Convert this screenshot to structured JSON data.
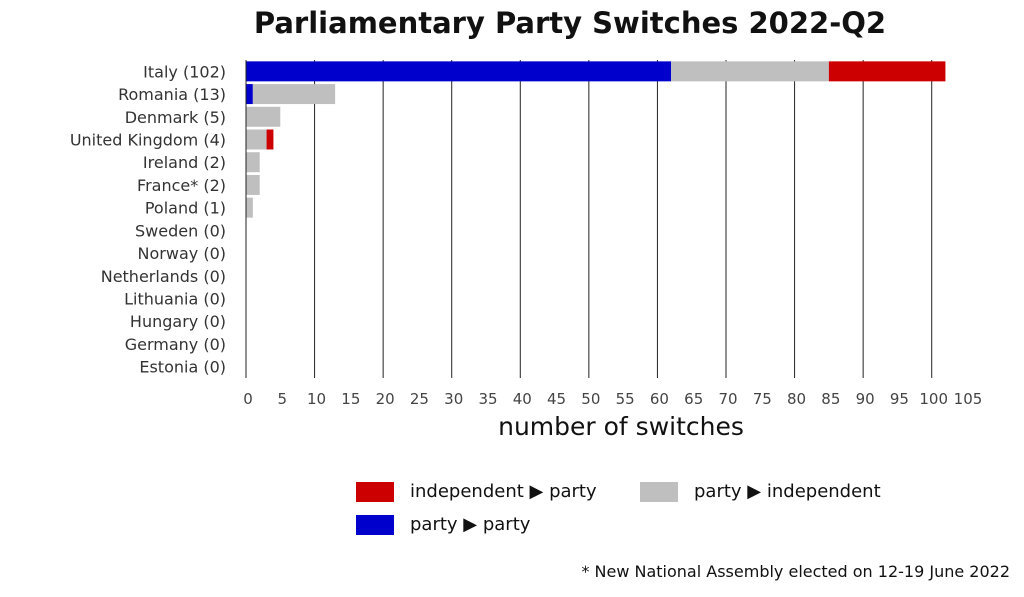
{
  "chart_data": {
    "type": "bar",
    "orientation": "horizontal",
    "stacked": true,
    "title": "Parliamentary Party Switches 2022-Q2",
    "xlabel": "number of switches",
    "ylabel": "",
    "xlim": [
      0,
      105
    ],
    "xticks": [
      0,
      5,
      10,
      15,
      20,
      25,
      30,
      35,
      40,
      45,
      50,
      55,
      60,
      65,
      70,
      75,
      80,
      85,
      90,
      95,
      100,
      105
    ],
    "grid": "vertical lines every 10",
    "legend_position": "bottom-right",
    "categories": [
      "Italy (102)",
      "Romania (13)",
      "Denmark (5)",
      "United Kingdom (4)",
      "Ireland (2)",
      "France* (2)",
      "Poland (1)",
      "Sweden (0)",
      "Norway (0)",
      "Netherlands (0)",
      "Lithuania (0)",
      "Hungary (0)",
      "Germany (0)",
      "Estonia (0)"
    ],
    "series": [
      {
        "name": "party ▶ party",
        "color": "#0000cc",
        "values": [
          62,
          1,
          0,
          0,
          0,
          0,
          0,
          0,
          0,
          0,
          0,
          0,
          0,
          0
        ]
      },
      {
        "name": "party ▶ independent",
        "color": "#bfbfbf",
        "values": [
          23,
          12,
          5,
          3,
          2,
          2,
          1,
          0,
          0,
          0,
          0,
          0,
          0,
          0
        ]
      },
      {
        "name": "independent ▶ party",
        "color": "#cc0000",
        "values": [
          17,
          0,
          0,
          1,
          0,
          0,
          0,
          0,
          0,
          0,
          0,
          0,
          0,
          0
        ]
      }
    ],
    "footnote": "* New National Assembly elected on 12-19 June 2022"
  },
  "legend": [
    {
      "label": "independent ▶ party",
      "color": "#cc0000"
    },
    {
      "label": "party ▶ independent",
      "color": "#bfbfbf"
    },
    {
      "label": "party ▶ party",
      "color": "#0000cc"
    }
  ]
}
